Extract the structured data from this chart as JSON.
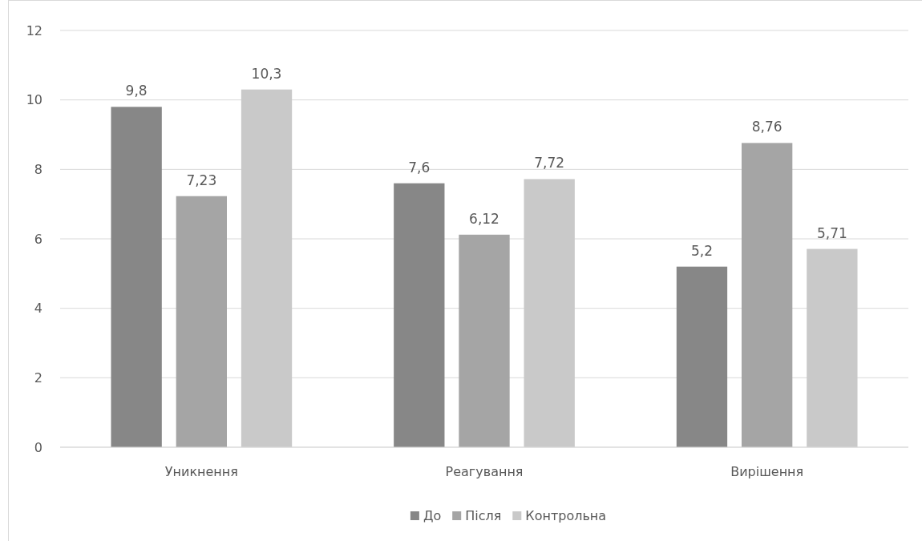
{
  "chart_data": {
    "type": "bar",
    "categories": [
      "Уникнення",
      "Реагування",
      "Вирішення"
    ],
    "series": [
      {
        "name": "До",
        "color": "#878787",
        "values": [
          9.8,
          7.6,
          5.2
        ],
        "value_labels": [
          "9,8",
          "7,6",
          "5,2"
        ]
      },
      {
        "name": "Після",
        "color": "#a5a5a5",
        "values": [
          7.23,
          6.12,
          8.76
        ],
        "value_labels": [
          "7,23",
          "6,12",
          "8,76"
        ]
      },
      {
        "name": "Контрольна",
        "color": "#c9c9c9",
        "values": [
          10.3,
          7.72,
          5.71
        ],
        "value_labels": [
          "10,3",
          "7,72",
          "5,71"
        ]
      }
    ],
    "ylim": [
      0,
      12
    ],
    "yticks": [
      0,
      2,
      4,
      6,
      8,
      10,
      12
    ],
    "grid": "y",
    "legend": "bottom"
  }
}
